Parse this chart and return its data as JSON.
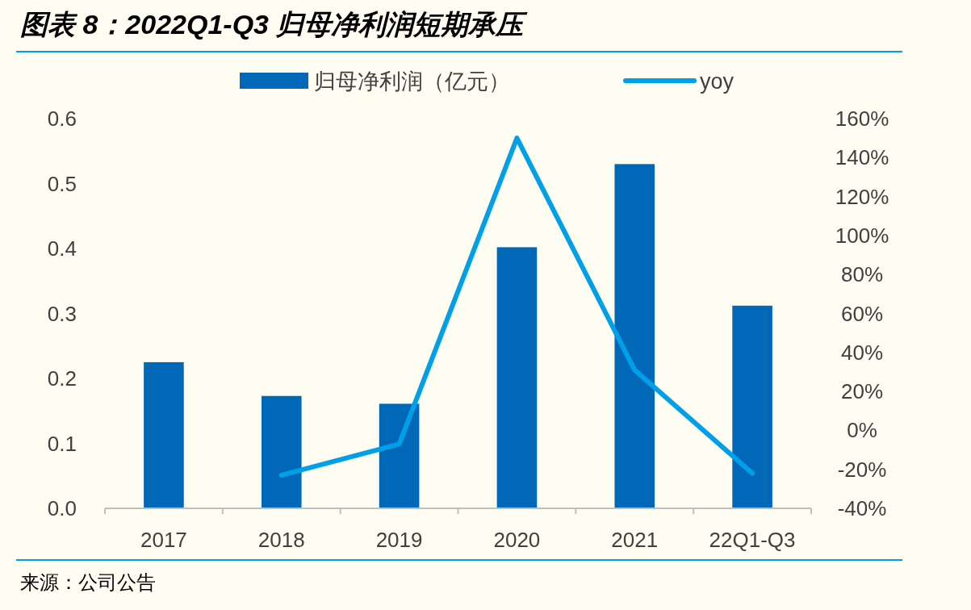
{
  "chart_data": {
    "type": "bar",
    "title": "图表 8：2022Q1-Q3 归母净利润短期承压",
    "categories": [
      "2017",
      "2018",
      "2019",
      "2020",
      "2021",
      "22Q1-Q3"
    ],
    "series": [
      {
        "name": "归母净利润（亿元）",
        "color": "#0068b7",
        "values": [
          0.225,
          0.173,
          0.161,
          0.402,
          0.53,
          0.312
        ]
      },
      {
        "name": "yoy",
        "type": "line",
        "axis": "y2",
        "color": "#00a0e9",
        "values": [
          null,
          -23,
          -7,
          150,
          31,
          -22
        ]
      }
    ],
    "ylim": [
      0,
      0.6
    ],
    "yticks": [
      {
        "value": 0,
        "label": "0.0"
      },
      0.1,
      0.2,
      0.3,
      0.4,
      0.5,
      0.6
    ],
    "y2lim": [
      -40,
      160
    ],
    "y2ticks": [
      {
        "value": -40,
        "label": "-40%"
      },
      {
        "value": -20,
        "label": "-20%"
      },
      {
        "value": 0,
        "label": "0%"
      },
      {
        "value": 20,
        "label": "20%"
      },
      {
        "value": 40,
        "label": "40%"
      },
      {
        "value": 60,
        "label": "60%"
      },
      {
        "value": 80,
        "label": "80%"
      },
      {
        "value": 100,
        "label": "100%"
      },
      {
        "value": 120,
        "label": "120%"
      },
      {
        "value": 140,
        "label": "140%"
      },
      {
        "value": 160,
        "label": "160%"
      }
    ],
    "legend": "top",
    "grid": false,
    "marker": "none",
    "annotations": [
      "来源：公司公告"
    ]
  }
}
